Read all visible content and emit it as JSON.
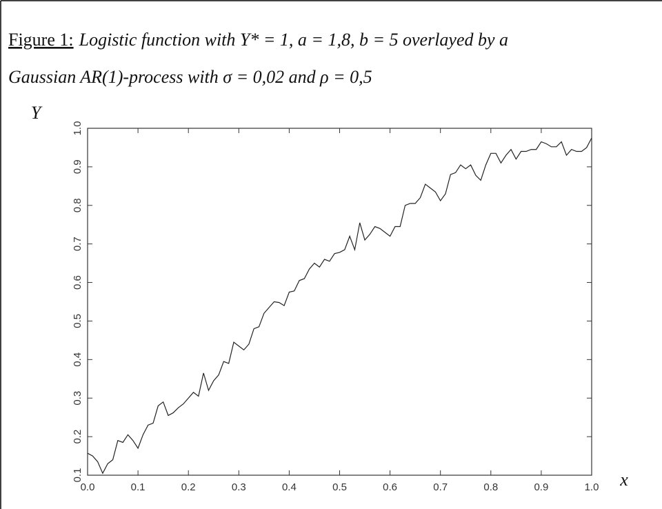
{
  "chart_data": {
    "type": "line",
    "caption_label": "Figure 1:",
    "caption": [
      "Logistic function with Y* = 1, a = 1,8, b = 5 overlayed by a",
      "Gaussian AR(1)-process with σ = 0,02 and ρ = 0,5"
    ],
    "xlabel": "x",
    "ylabel": "Y",
    "color": "#222",
    "x": [
      0,
      0.01,
      0.02,
      0.03,
      0.04,
      0.05,
      0.06,
      0.07,
      0.08,
      0.09,
      0.1,
      0.11,
      0.12,
      0.13,
      0.14,
      0.15,
      0.16,
      0.17,
      0.18,
      0.19,
      0.2,
      0.21,
      0.22,
      0.23,
      0.24,
      0.25,
      0.26,
      0.27,
      0.28,
      0.29,
      0.3,
      0.31,
      0.32,
      0.33,
      0.34,
      0.35,
      0.36,
      0.37,
      0.38,
      0.39,
      0.4,
      0.41,
      0.42,
      0.43,
      0.44,
      0.45,
      0.46,
      0.47,
      0.48,
      0.49,
      0.5,
      0.51,
      0.52,
      0.53,
      0.54,
      0.55,
      0.56,
      0.57,
      0.58,
      0.59,
      0.6,
      0.61,
      0.62,
      0.63,
      0.64,
      0.65,
      0.66,
      0.67,
      0.68,
      0.69,
      0.7,
      0.71,
      0.72,
      0.73,
      0.74,
      0.75,
      0.76,
      0.77,
      0.78,
      0.79,
      0.8,
      0.81,
      0.82,
      0.83,
      0.84,
      0.85,
      0.86,
      0.87,
      0.88,
      0.89,
      0.9,
      0.91,
      0.92,
      0.93,
      0.94,
      0.95,
      0.96,
      0.97,
      0.98,
      0.99,
      1
    ],
    "values": [
      0.157,
      0.15,
      0.135,
      0.105,
      0.13,
      0.14,
      0.19,
      0.185,
      0.205,
      0.19,
      0.17,
      0.205,
      0.23,
      0.235,
      0.28,
      0.29,
      0.255,
      0.262,
      0.275,
      0.285,
      0.3,
      0.315,
      0.305,
      0.365,
      0.32,
      0.345,
      0.36,
      0.395,
      0.39,
      0.445,
      0.435,
      0.425,
      0.44,
      0.48,
      0.485,
      0.52,
      0.535,
      0.55,
      0.548,
      0.54,
      0.575,
      0.578,
      0.605,
      0.61,
      0.635,
      0.65,
      0.64,
      0.66,
      0.655,
      0.675,
      0.678,
      0.685,
      0.72,
      0.685,
      0.755,
      0.71,
      0.725,
      0.745,
      0.74,
      0.73,
      0.72,
      0.745,
      0.745,
      0.8,
      0.805,
      0.805,
      0.82,
      0.855,
      0.845,
      0.835,
      0.812,
      0.83,
      0.88,
      0.885,
      0.905,
      0.895,
      0.905,
      0.878,
      0.865,
      0.905,
      0.935,
      0.935,
      0.91,
      0.93,
      0.945,
      0.92,
      0.94,
      0.94,
      0.945,
      0.945,
      0.965,
      0.96,
      0.952,
      0.952,
      0.965,
      0.93,
      0.945,
      0.94,
      0.94,
      0.95,
      0.975
    ],
    "xlim": [
      0,
      1
    ],
    "ylim": [
      0.1,
      1
    ],
    "xticks": [
      {
        "value": 0,
        "label": "0.0"
      },
      0.1,
      0.2,
      0.3,
      0.4,
      0.5,
      0.6,
      0.7,
      0.8,
      0.9,
      {
        "value": 1,
        "label": "1.0"
      }
    ],
    "yticks": [
      0.1,
      0.2,
      0.3,
      0.4,
      0.5,
      0.6,
      0.7,
      0.8,
      0.9,
      {
        "value": 1,
        "label": "1.0"
      }
    ]
  }
}
